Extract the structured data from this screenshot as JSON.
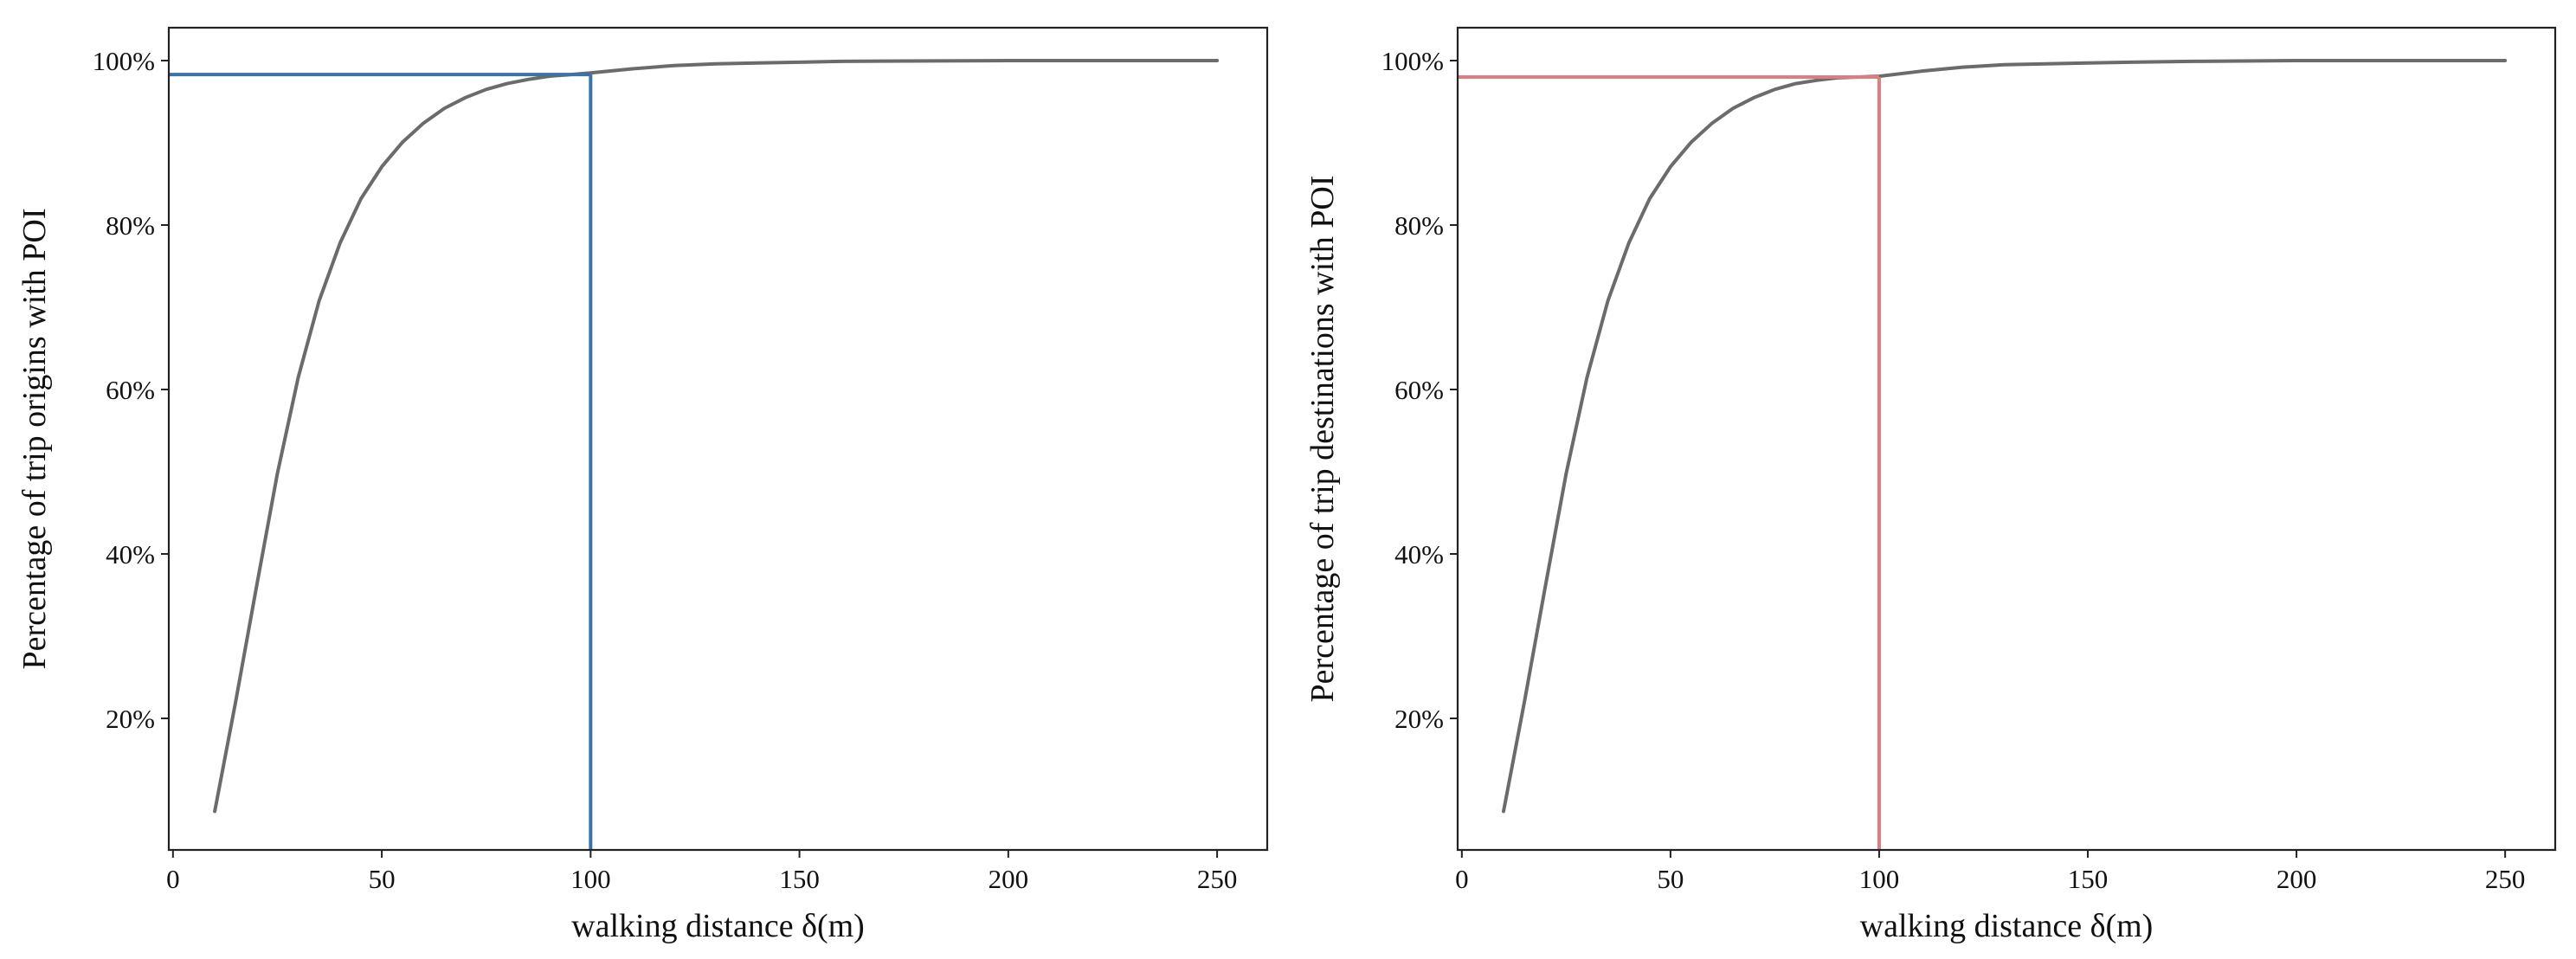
{
  "chart_data": [
    {
      "type": "line",
      "title": "",
      "xlabel": "walking distance δ(m)",
      "ylabel": "Percentage of trip origins with POI",
      "xlim": [
        -1,
        262
      ],
      "ylim": [
        4,
        104
      ],
      "xticks": [
        0,
        50,
        100,
        150,
        200,
        250
      ],
      "xtick_labels": [
        "0",
        "50",
        "100",
        "150",
        "200",
        "250"
      ],
      "yticks": [
        20,
        40,
        60,
        80,
        100
      ],
      "ytick_labels": [
        "20%",
        "40%",
        "60%",
        "80%",
        "100%"
      ],
      "grid": false,
      "series": [
        {
          "x": [
            10,
            15,
            20,
            25,
            30,
            35,
            40,
            45,
            50,
            55,
            60,
            65,
            70,
            75,
            80,
            85,
            90,
            95,
            100,
            110,
            120,
            130,
            140,
            150,
            160,
            175,
            200,
            225,
            250
          ],
          "y": [
            8.7,
            22.0,
            36.0,
            49.8,
            61.5,
            70.8,
            77.8,
            83.2,
            87.1,
            90.1,
            92.4,
            94.2,
            95.5,
            96.5,
            97.2,
            97.7,
            98.1,
            98.3,
            98.5,
            99.0,
            99.4,
            99.6,
            99.7,
            99.8,
            99.9,
            99.95,
            100.0,
            100.0,
            100.0
          ],
          "color": "#6b6b6b"
        }
      ],
      "reference": {
        "x": 100,
        "y": 98.3,
        "color": "#3a73a8"
      }
    },
    {
      "type": "line",
      "title": "",
      "xlabel": "walking distance δ(m)",
      "ylabel": "Percentage of trip destinations with POI",
      "xlim": [
        -1,
        262
      ],
      "ylim": [
        4,
        104
      ],
      "xticks": [
        0,
        50,
        100,
        150,
        200,
        250
      ],
      "xtick_labels": [
        "0",
        "50",
        "100",
        "150",
        "200",
        "250"
      ],
      "yticks": [
        20,
        40,
        60,
        80,
        100
      ],
      "ytick_labels": [
        "20%",
        "40%",
        "60%",
        "80%",
        "100%"
      ],
      "grid": false,
      "series": [
        {
          "x": [
            10,
            15,
            20,
            25,
            30,
            35,
            40,
            45,
            50,
            55,
            60,
            65,
            70,
            75,
            80,
            85,
            90,
            95,
            100,
            110,
            120,
            130,
            140,
            150,
            160,
            175,
            200,
            225,
            250
          ],
          "y": [
            8.7,
            22.0,
            36.0,
            49.8,
            61.5,
            70.8,
            77.8,
            83.2,
            87.1,
            90.1,
            92.4,
            94.2,
            95.5,
            96.5,
            97.2,
            97.6,
            97.9,
            98.0,
            98.1,
            98.7,
            99.2,
            99.5,
            99.6,
            99.7,
            99.8,
            99.9,
            100.0,
            100.0,
            100.0
          ],
          "color": "#6b6b6b"
        }
      ],
      "reference": {
        "x": 100,
        "y": 98.0,
        "color": "#e07b80"
      }
    }
  ]
}
